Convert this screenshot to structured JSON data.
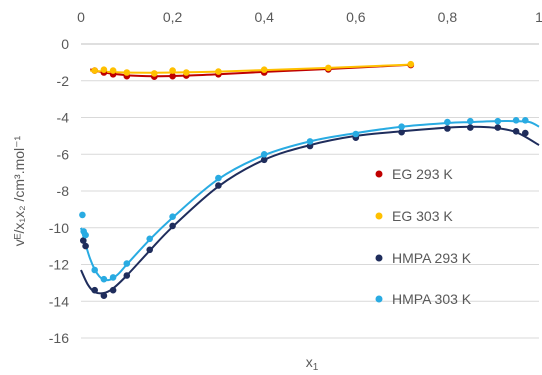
{
  "chart_data": {
    "type": "scatter",
    "title": "",
    "xlabel": {
      "base": "x",
      "sub": "1"
    },
    "ylabel": {
      "text": "vᴱ/x₁x₂ /cm³.mol⁻¹"
    },
    "xlim": [
      0,
      1
    ],
    "ylim": [
      -16,
      0
    ],
    "x_ticks": [
      0,
      0.2,
      0.4,
      0.6,
      0.8,
      1
    ],
    "x_tick_labels": [
      "0",
      "0,2",
      "0,4",
      "0,6",
      "0,8",
      "1"
    ],
    "y_ticks": [
      0,
      -2,
      -4,
      -6,
      -8,
      -10,
      -12,
      -14,
      -16
    ],
    "y_tick_labels": [
      "0",
      "-2",
      "-4",
      "-6",
      "-8",
      "-10",
      "-12",
      "-14",
      "-16"
    ],
    "x_axis_position": "top",
    "grid": "horizontal",
    "legend_position": "right",
    "series": [
      {
        "name": "EG 293 K",
        "color": "#c00000",
        "points": [
          [
            0.03,
            -1.45
          ],
          [
            0.05,
            -1.55
          ],
          [
            0.07,
            -1.65
          ],
          [
            0.1,
            -1.75
          ],
          [
            0.16,
            -1.78
          ],
          [
            0.2,
            -1.75
          ],
          [
            0.23,
            -1.72
          ],
          [
            0.3,
            -1.65
          ],
          [
            0.4,
            -1.55
          ],
          [
            0.54,
            -1.38
          ],
          [
            0.72,
            -1.15
          ]
        ],
        "fit": [
          [
            0.02,
            -1.38
          ],
          [
            0.05,
            -1.55
          ],
          [
            0.1,
            -1.7
          ],
          [
            0.16,
            -1.75
          ],
          [
            0.23,
            -1.72
          ],
          [
            0.3,
            -1.65
          ],
          [
            0.4,
            -1.52
          ],
          [
            0.54,
            -1.36
          ],
          [
            0.72,
            -1.13
          ]
        ]
      },
      {
        "name": "EG 303 K",
        "color": "#ffc000",
        "points": [
          [
            0.03,
            -1.45
          ],
          [
            0.05,
            -1.4
          ],
          [
            0.07,
            -1.45
          ],
          [
            0.1,
            -1.55
          ],
          [
            0.16,
            -1.6
          ],
          [
            0.2,
            -1.45
          ],
          [
            0.23,
            -1.55
          ],
          [
            0.3,
            -1.5
          ],
          [
            0.4,
            -1.4
          ],
          [
            0.54,
            -1.3
          ],
          [
            0.72,
            -1.1
          ]
        ],
        "fit": [
          [
            0.02,
            -1.45
          ],
          [
            0.05,
            -1.5
          ],
          [
            0.1,
            -1.55
          ],
          [
            0.16,
            -1.56
          ],
          [
            0.23,
            -1.54
          ],
          [
            0.3,
            -1.5
          ],
          [
            0.4,
            -1.42
          ],
          [
            0.54,
            -1.3
          ],
          [
            0.72,
            -1.12
          ]
        ]
      },
      {
        "name": "HMPA 293 K",
        "color": "#1f2d5c",
        "points": [
          [
            0.005,
            -10.7
          ],
          [
            0.01,
            -11.0
          ],
          [
            0.03,
            -13.4
          ],
          [
            0.05,
            -13.7
          ],
          [
            0.07,
            -13.4
          ],
          [
            0.1,
            -12.6
          ],
          [
            0.15,
            -11.2
          ],
          [
            0.2,
            -9.9
          ],
          [
            0.3,
            -7.7
          ],
          [
            0.4,
            -6.3
          ],
          [
            0.5,
            -5.55
          ],
          [
            0.6,
            -5.1
          ],
          [
            0.7,
            -4.8
          ],
          [
            0.8,
            -4.6
          ],
          [
            0.85,
            -4.55
          ],
          [
            0.91,
            -4.55
          ],
          [
            0.95,
            -4.75
          ],
          [
            0.97,
            -4.85
          ]
        ],
        "fit": [
          [
            0,
            -12.3
          ],
          [
            0.015,
            -13.1
          ],
          [
            0.03,
            -13.5
          ],
          [
            0.05,
            -13.55
          ],
          [
            0.07,
            -13.3
          ],
          [
            0.1,
            -12.6
          ],
          [
            0.15,
            -11.25
          ],
          [
            0.2,
            -9.95
          ],
          [
            0.3,
            -7.75
          ],
          [
            0.4,
            -6.3
          ],
          [
            0.5,
            -5.5
          ],
          [
            0.6,
            -5.0
          ],
          [
            0.7,
            -4.75
          ],
          [
            0.8,
            -4.55
          ],
          [
            0.85,
            -4.5
          ],
          [
            0.9,
            -4.55
          ],
          [
            0.95,
            -4.8
          ],
          [
            1.0,
            -5.5
          ]
        ]
      },
      {
        "name": "HMPA 303 K",
        "color": "#29abe2",
        "points": [
          [
            0.003,
            -9.3
          ],
          [
            0.006,
            -10.2
          ],
          [
            0.01,
            -10.4
          ],
          [
            0.03,
            -12.3
          ],
          [
            0.05,
            -12.8
          ],
          [
            0.07,
            -12.7
          ],
          [
            0.1,
            -11.95
          ],
          [
            0.15,
            -10.6
          ],
          [
            0.2,
            -9.4
          ],
          [
            0.3,
            -7.3
          ],
          [
            0.4,
            -6.0
          ],
          [
            0.5,
            -5.3
          ],
          [
            0.6,
            -4.9
          ],
          [
            0.7,
            -4.5
          ],
          [
            0.8,
            -4.25
          ],
          [
            0.85,
            -4.2
          ],
          [
            0.91,
            -4.2
          ],
          [
            0.95,
            -4.15
          ],
          [
            0.97,
            -4.15
          ]
        ],
        "fit": [
          [
            0,
            -10.0
          ],
          [
            0.02,
            -11.7
          ],
          [
            0.04,
            -12.65
          ],
          [
            0.06,
            -12.85
          ],
          [
            0.08,
            -12.55
          ],
          [
            0.1,
            -12.0
          ],
          [
            0.15,
            -10.65
          ],
          [
            0.2,
            -9.45
          ],
          [
            0.3,
            -7.35
          ],
          [
            0.4,
            -6.05
          ],
          [
            0.5,
            -5.3
          ],
          [
            0.6,
            -4.85
          ],
          [
            0.7,
            -4.5
          ],
          [
            0.8,
            -4.3
          ],
          [
            0.85,
            -4.25
          ],
          [
            0.9,
            -4.2
          ],
          [
            0.95,
            -4.2
          ],
          [
            0.98,
            -4.25
          ],
          [
            1.0,
            -4.5
          ]
        ]
      }
    ]
  }
}
